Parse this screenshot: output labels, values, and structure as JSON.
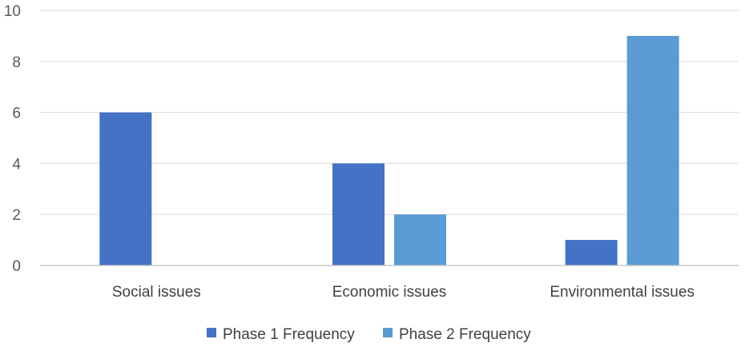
{
  "chart_data": {
    "type": "bar",
    "title": "",
    "xlabel": "",
    "ylabel": "",
    "categories": [
      "Social issues",
      "Economic issues",
      "Environmental issues"
    ],
    "series": [
      {
        "name": "Phase 1 Frequency",
        "values": [
          6,
          4,
          1
        ],
        "color": "#4472C4"
      },
      {
        "name": "Phase 2 Frequency",
        "values": [
          0,
          2,
          9
        ],
        "color": "#5B9BD5"
      }
    ],
    "ylim": [
      0,
      10
    ],
    "yticks": [
      "0",
      "2",
      "4",
      "6",
      "8",
      "10"
    ],
    "grid": true,
    "legend_position": "bottom"
  }
}
